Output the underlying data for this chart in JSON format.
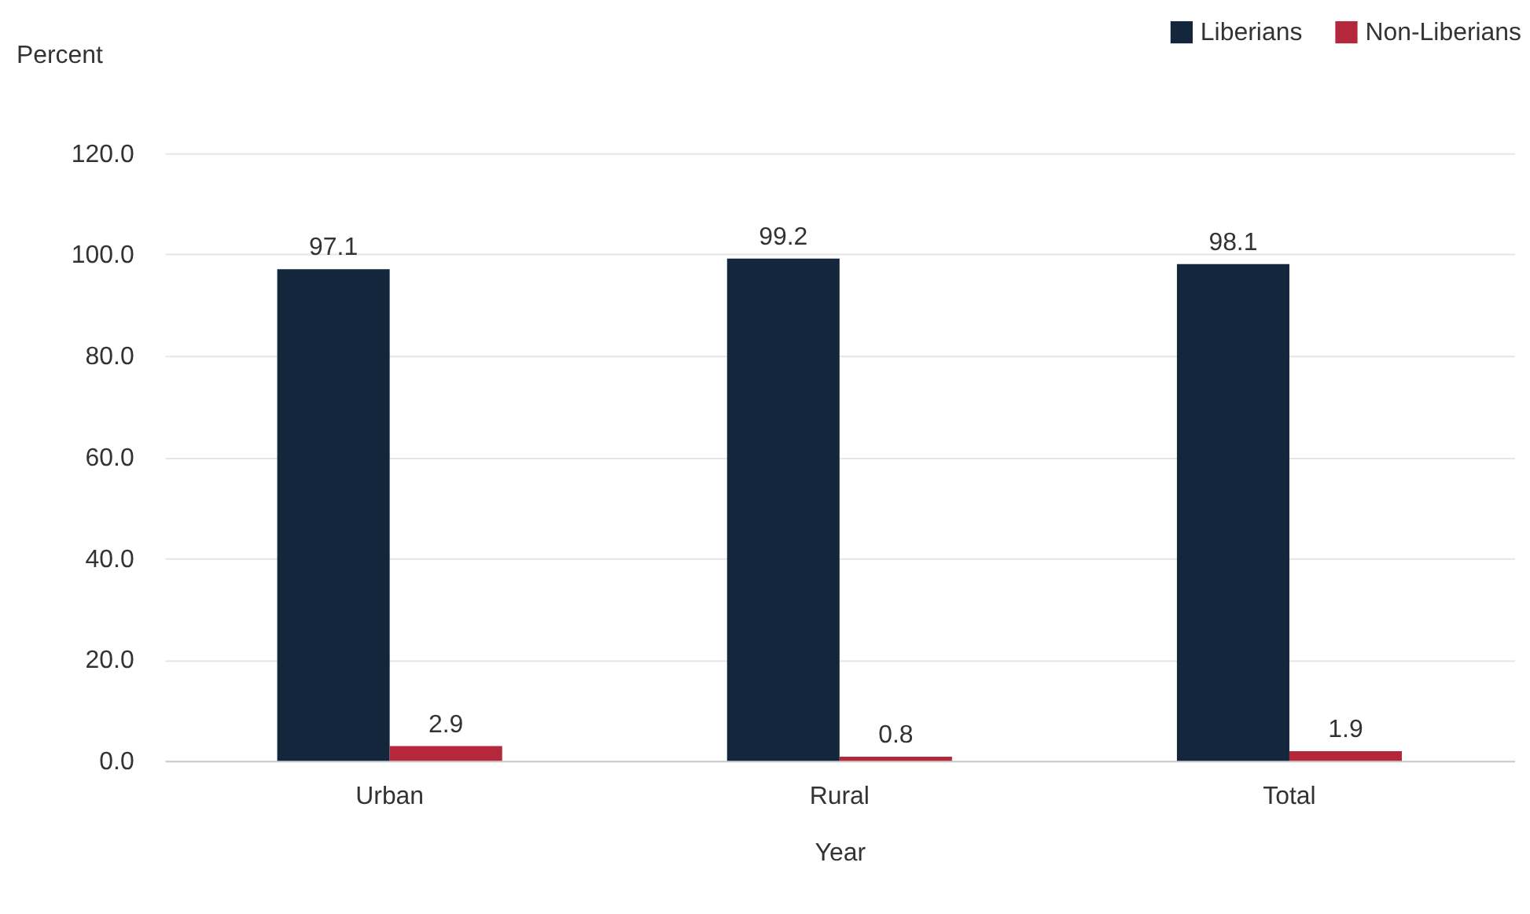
{
  "chart_data": {
    "type": "bar",
    "xlabel": "Year",
    "ylabel": "Percent",
    "categories": [
      "Urban",
      "Rural",
      "Total"
    ],
    "series": [
      {
        "name": "Liberians",
        "color": "#13263b",
        "values": [
          97.1,
          99.2,
          98.1
        ]
      },
      {
        "name": "Non-Liberians",
        "color": "#b5283b",
        "values": [
          2.9,
          0.8,
          1.9
        ]
      }
    ],
    "ylim": [
      0,
      120
    ],
    "yticks": [
      {
        "value": 0,
        "label": "0.0"
      },
      {
        "value": 20,
        "label": "20.0"
      },
      {
        "value": 40,
        "label": "40.0"
      },
      {
        "value": 60,
        "label": "60.0"
      },
      {
        "value": 80,
        "label": "80.0"
      },
      {
        "value": 100,
        "label": "100.0"
      },
      {
        "value": 120,
        "label": "120.0"
      }
    ],
    "grid": "y",
    "legend": "top right",
    "data_labels": true
  }
}
